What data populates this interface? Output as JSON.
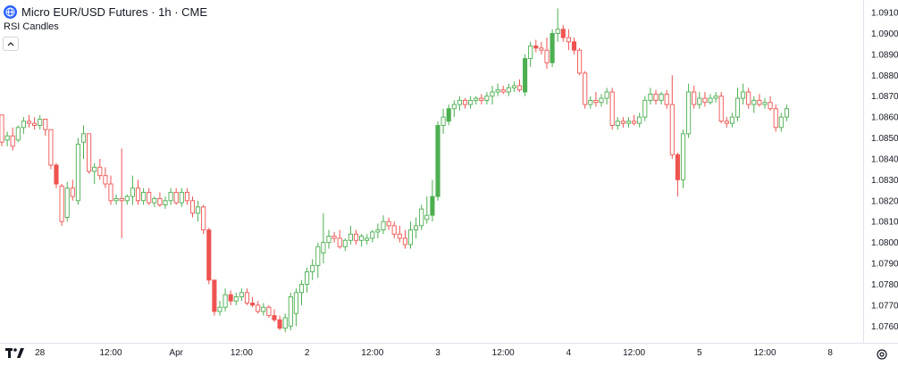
{
  "header": {
    "symbol_title": "Micro EUR/USD Futures · 1h · CME",
    "indicator_label": "RSI Candles",
    "symbol_icon": "globe-icon",
    "collapse_icon": "chevron-up-icon"
  },
  "footer": {
    "logo_icon": "tradingview-logo-icon",
    "settings_icon": "settings-icon"
  },
  "colors": {
    "up": "#4caf50",
    "down": "#ef5350",
    "axis": "#e0e3eb",
    "text": "#131722"
  },
  "chart_data": {
    "type": "candlestick",
    "title": "",
    "xlabel": "",
    "ylabel": "",
    "ylim": [
      1.0752,
      1.0916
    ],
    "y_ticks": [
      1.091,
      1.09,
      1.089,
      1.088,
      1.087,
      1.086,
      1.085,
      1.084,
      1.083,
      1.082,
      1.081,
      1.08,
      1.079,
      1.078,
      1.077,
      1.076
    ],
    "y_tick_labels": [
      "1.0910",
      "1.0900",
      "1.0890",
      "1.0880",
      "1.0870",
      "1.0860",
      "1.0850",
      "1.0840",
      "1.0830",
      "1.0820",
      "1.0810",
      "1.0800",
      "1.0790",
      "1.0780",
      "1.0770",
      "1.0760"
    ],
    "x_ticks": [
      {
        "label": "28",
        "index": 7
      },
      {
        "label": "12:00",
        "index": 20
      },
      {
        "label": "Apr",
        "index": 32
      },
      {
        "label": "12:00",
        "index": 44
      },
      {
        "label": "2",
        "index": 56
      },
      {
        "label": "12:00",
        "index": 68
      },
      {
        "label": "3",
        "index": 80
      },
      {
        "label": "12:00",
        "index": 92
      },
      {
        "label": "4",
        "index": 104
      },
      {
        "label": "12:00",
        "index": 116
      },
      {
        "label": "5",
        "index": 128
      },
      {
        "label": "12:00",
        "index": 140
      },
      {
        "label": "8",
        "index": 152
      }
    ],
    "candles": [
      {
        "o": 1.0861,
        "h": 1.0861,
        "l": 1.0846,
        "c": 1.0848,
        "fill": "none"
      },
      {
        "o": 1.0849,
        "h": 1.0853,
        "l": 1.0846,
        "c": 1.0851,
        "fill": "none"
      },
      {
        "o": 1.0851,
        "h": 1.0855,
        "l": 1.0844,
        "c": 1.0846,
        "fill": "none"
      },
      {
        "o": 1.0849,
        "h": 1.0856,
        "l": 1.0848,
        "c": 1.0855,
        "fill": "none"
      },
      {
        "o": 1.0855,
        "h": 1.086,
        "l": 1.0852,
        "c": 1.0858,
        "fill": "none"
      },
      {
        "o": 1.0858,
        "h": 1.0861,
        "l": 1.0855,
        "c": 1.0857,
        "fill": "none"
      },
      {
        "o": 1.0857,
        "h": 1.086,
        "l": 1.0854,
        "c": 1.0856,
        "fill": "none"
      },
      {
        "o": 1.0856,
        "h": 1.0861,
        "l": 1.0854,
        "c": 1.0859,
        "fill": "none"
      },
      {
        "o": 1.0859,
        "h": 1.0859,
        "l": 1.0851,
        "c": 1.0854,
        "fill": "none"
      },
      {
        "o": 1.0854,
        "h": 1.0854,
        "l": 1.0835,
        "c": 1.0837,
        "fill": "none"
      },
      {
        "o": 1.0837,
        "h": 1.0838,
        "l": 1.0826,
        "c": 1.0828,
        "fill": "solid"
      },
      {
        "o": 1.0827,
        "h": 1.0828,
        "l": 1.0808,
        "c": 1.081,
        "fill": "none"
      },
      {
        "o": 1.0812,
        "h": 1.0829,
        "l": 1.081,
        "c": 1.0826,
        "fill": "none"
      },
      {
        "o": 1.0826,
        "h": 1.083,
        "l": 1.082,
        "c": 1.0822,
        "fill": "none"
      },
      {
        "o": 1.082,
        "h": 1.085,
        "l": 1.0818,
        "c": 1.0847,
        "fill": "none"
      },
      {
        "o": 1.0848,
        "h": 1.0856,
        "l": 1.084,
        "c": 1.0852,
        "fill": "none"
      },
      {
        "o": 1.0852,
        "h": 1.0852,
        "l": 1.0833,
        "c": 1.0834,
        "fill": "none"
      },
      {
        "o": 1.0834,
        "h": 1.0838,
        "l": 1.0828,
        "c": 1.0836,
        "fill": "none"
      },
      {
        "o": 1.0836,
        "h": 1.084,
        "l": 1.083,
        "c": 1.0832,
        "fill": "none"
      },
      {
        "o": 1.0832,
        "h": 1.0836,
        "l": 1.0826,
        "c": 1.0828,
        "fill": "none"
      },
      {
        "o": 1.0828,
        "h": 1.0832,
        "l": 1.0818,
        "c": 1.082,
        "fill": "none"
      },
      {
        "o": 1.082,
        "h": 1.0823,
        "l": 1.0818,
        "c": 1.0821,
        "fill": "none"
      },
      {
        "o": 1.0821,
        "h": 1.0845,
        "l": 1.0802,
        "c": 1.082,
        "fill": "none"
      },
      {
        "o": 1.082,
        "h": 1.0823,
        "l": 1.0818,
        "c": 1.0822,
        "fill": "none"
      },
      {
        "o": 1.0822,
        "h": 1.0832,
        "l": 1.0818,
        "c": 1.0826,
        "fill": "none"
      },
      {
        "o": 1.0826,
        "h": 1.083,
        "l": 1.0818,
        "c": 1.082,
        "fill": "none"
      },
      {
        "o": 1.082,
        "h": 1.0826,
        "l": 1.0818,
        "c": 1.0824,
        "fill": "none"
      },
      {
        "o": 1.0824,
        "h": 1.0826,
        "l": 1.0818,
        "c": 1.0819,
        "fill": "none"
      },
      {
        "o": 1.0819,
        "h": 1.0822,
        "l": 1.0817,
        "c": 1.0821,
        "fill": "none"
      },
      {
        "o": 1.0821,
        "h": 1.0824,
        "l": 1.0817,
        "c": 1.0818,
        "fill": "none"
      },
      {
        "o": 1.0818,
        "h": 1.0822,
        "l": 1.0816,
        "c": 1.082,
        "fill": "none"
      },
      {
        "o": 1.082,
        "h": 1.0826,
        "l": 1.0818,
        "c": 1.0824,
        "fill": "none"
      },
      {
        "o": 1.0824,
        "h": 1.0826,
        "l": 1.0818,
        "c": 1.0819,
        "fill": "none"
      },
      {
        "o": 1.0819,
        "h": 1.0826,
        "l": 1.0817,
        "c": 1.0824,
        "fill": "none"
      },
      {
        "o": 1.0824,
        "h": 1.0826,
        "l": 1.0818,
        "c": 1.082,
        "fill": "none"
      },
      {
        "o": 1.082,
        "h": 1.0822,
        "l": 1.0812,
        "c": 1.0814,
        "fill": "none"
      },
      {
        "o": 1.0814,
        "h": 1.082,
        "l": 1.081,
        "c": 1.0817,
        "fill": "none"
      },
      {
        "o": 1.0817,
        "h": 1.0818,
        "l": 1.0804,
        "c": 1.0806,
        "fill": "none"
      },
      {
        "o": 1.0806,
        "h": 1.0807,
        "l": 1.078,
        "c": 1.0782,
        "fill": "solid"
      },
      {
        "o": 1.0782,
        "h": 1.0782,
        "l": 1.0765,
        "c": 1.0767,
        "fill": "solid"
      },
      {
        "o": 1.0767,
        "h": 1.0772,
        "l": 1.0765,
        "c": 1.0769,
        "fill": "none"
      },
      {
        "o": 1.0769,
        "h": 1.0778,
        "l": 1.0767,
        "c": 1.0775,
        "fill": "none"
      },
      {
        "o": 1.0775,
        "h": 1.0777,
        "l": 1.077,
        "c": 1.0772,
        "fill": "solid"
      },
      {
        "o": 1.0772,
        "h": 1.0776,
        "l": 1.077,
        "c": 1.0774,
        "fill": "none"
      },
      {
        "o": 1.0774,
        "h": 1.0778,
        "l": 1.0772,
        "c": 1.0776,
        "fill": "none"
      },
      {
        "o": 1.0776,
        "h": 1.0778,
        "l": 1.077,
        "c": 1.0771,
        "fill": "none"
      },
      {
        "o": 1.0771,
        "h": 1.0774,
        "l": 1.0769,
        "c": 1.077,
        "fill": "solid"
      },
      {
        "o": 1.077,
        "h": 1.0772,
        "l": 1.0766,
        "c": 1.0767,
        "fill": "none"
      },
      {
        "o": 1.0767,
        "h": 1.0771,
        "l": 1.0765,
        "c": 1.0769,
        "fill": "none"
      },
      {
        "o": 1.0769,
        "h": 1.077,
        "l": 1.0764,
        "c": 1.0765,
        "fill": "none"
      },
      {
        "o": 1.0765,
        "h": 1.0768,
        "l": 1.0762,
        "c": 1.0763,
        "fill": "solid"
      },
      {
        "o": 1.0763,
        "h": 1.0765,
        "l": 1.0758,
        "c": 1.0759,
        "fill": "solid"
      },
      {
        "o": 1.0759,
        "h": 1.0766,
        "l": 1.0757,
        "c": 1.0764,
        "fill": "none"
      },
      {
        "o": 1.076,
        "h": 1.0776,
        "l": 1.0758,
        "c": 1.0774,
        "fill": "none"
      },
      {
        "o": 1.0766,
        "h": 1.0778,
        "l": 1.076,
        "c": 1.0776,
        "fill": "none"
      },
      {
        "o": 1.0776,
        "h": 1.0782,
        "l": 1.077,
        "c": 1.078,
        "fill": "none"
      },
      {
        "o": 1.078,
        "h": 1.0788,
        "l": 1.0776,
        "c": 1.0786,
        "fill": "none"
      },
      {
        "o": 1.0786,
        "h": 1.0792,
        "l": 1.0782,
        "c": 1.0789,
        "fill": "none"
      },
      {
        "o": 1.0789,
        "h": 1.08,
        "l": 1.0783,
        "c": 1.0798,
        "fill": "none"
      },
      {
        "o": 1.0795,
        "h": 1.0814,
        "l": 1.079,
        "c": 1.08,
        "fill": "none"
      },
      {
        "o": 1.08,
        "h": 1.0806,
        "l": 1.0797,
        "c": 1.0803,
        "fill": "none"
      },
      {
        "o": 1.0803,
        "h": 1.0805,
        "l": 1.08,
        "c": 1.0802,
        "fill": "none"
      },
      {
        "o": 1.0802,
        "h": 1.0806,
        "l": 1.0797,
        "c": 1.0798,
        "fill": "none"
      },
      {
        "o": 1.0798,
        "h": 1.0802,
        "l": 1.0796,
        "c": 1.0801,
        "fill": "none"
      },
      {
        "o": 1.0801,
        "h": 1.0808,
        "l": 1.0799,
        "c": 1.0804,
        "fill": "none"
      },
      {
        "o": 1.0804,
        "h": 1.0806,
        "l": 1.0799,
        "c": 1.0801,
        "fill": "none"
      },
      {
        "o": 1.0801,
        "h": 1.0804,
        "l": 1.0798,
        "c": 1.0803,
        "fill": "none"
      },
      {
        "o": 1.0801,
        "h": 1.0804,
        "l": 1.0799,
        "c": 1.0802,
        "fill": "none"
      },
      {
        "o": 1.0802,
        "h": 1.0806,
        "l": 1.08,
        "c": 1.0805,
        "fill": "none"
      },
      {
        "o": 1.0805,
        "h": 1.0809,
        "l": 1.0802,
        "c": 1.0806,
        "fill": "none"
      },
      {
        "o": 1.0806,
        "h": 1.0813,
        "l": 1.0804,
        "c": 1.081,
        "fill": "none"
      },
      {
        "o": 1.081,
        "h": 1.0812,
        "l": 1.0806,
        "c": 1.0808,
        "fill": "none"
      },
      {
        "o": 1.0808,
        "h": 1.081,
        "l": 1.0802,
        "c": 1.0804,
        "fill": "none"
      },
      {
        "o": 1.0804,
        "h": 1.0808,
        "l": 1.08,
        "c": 1.0802,
        "fill": "none"
      },
      {
        "o": 1.0802,
        "h": 1.0806,
        "l": 1.0797,
        "c": 1.0799,
        "fill": "none"
      },
      {
        "o": 1.0799,
        "h": 1.081,
        "l": 1.0797,
        "c": 1.0806,
        "fill": "none"
      },
      {
        "o": 1.0806,
        "h": 1.0812,
        "l": 1.0802,
        "c": 1.0808,
        "fill": "none"
      },
      {
        "o": 1.0808,
        "h": 1.0818,
        "l": 1.0806,
        "c": 1.0816,
        "fill": "none"
      },
      {
        "o": 1.0811,
        "h": 1.0822,
        "l": 1.0809,
        "c": 1.0813,
        "fill": "none"
      },
      {
        "o": 1.0813,
        "h": 1.083,
        "l": 1.081,
        "c": 1.0822,
        "fill": "solid"
      },
      {
        "o": 1.0822,
        "h": 1.0858,
        "l": 1.082,
        "c": 1.0856,
        "fill": "solid"
      },
      {
        "o": 1.0856,
        "h": 1.0864,
        "l": 1.0852,
        "c": 1.086,
        "fill": "none"
      },
      {
        "o": 1.0858,
        "h": 1.0866,
        "l": 1.0856,
        "c": 1.0864,
        "fill": "solid"
      },
      {
        "o": 1.0864,
        "h": 1.0868,
        "l": 1.086,
        "c": 1.0866,
        "fill": "none"
      },
      {
        "o": 1.0866,
        "h": 1.087,
        "l": 1.0863,
        "c": 1.0868,
        "fill": "none"
      },
      {
        "o": 1.0868,
        "h": 1.0869,
        "l": 1.0864,
        "c": 1.0866,
        "fill": "none"
      },
      {
        "o": 1.0866,
        "h": 1.087,
        "l": 1.0864,
        "c": 1.0868,
        "fill": "none"
      },
      {
        "o": 1.0868,
        "h": 1.087,
        "l": 1.0866,
        "c": 1.0869,
        "fill": "none"
      },
      {
        "o": 1.0869,
        "h": 1.0871,
        "l": 1.0866,
        "c": 1.0868,
        "fill": "none"
      },
      {
        "o": 1.0868,
        "h": 1.0872,
        "l": 1.0866,
        "c": 1.087,
        "fill": "none"
      },
      {
        "o": 1.087,
        "h": 1.0875,
        "l": 1.0866,
        "c": 1.0872,
        "fill": "none"
      },
      {
        "o": 1.0872,
        "h": 1.0876,
        "l": 1.087,
        "c": 1.0873,
        "fill": "none"
      },
      {
        "o": 1.0873,
        "h": 1.0875,
        "l": 1.0871,
        "c": 1.0872,
        "fill": "none"
      },
      {
        "o": 1.0872,
        "h": 1.0876,
        "l": 1.087,
        "c": 1.0874,
        "fill": "none"
      },
      {
        "o": 1.0874,
        "h": 1.0877,
        "l": 1.0872,
        "c": 1.0875,
        "fill": "none"
      },
      {
        "o": 1.0875,
        "h": 1.0878,
        "l": 1.0872,
        "c": 1.0873,
        "fill": "none"
      },
      {
        "o": 1.0872,
        "h": 1.089,
        "l": 1.087,
        "c": 1.0888,
        "fill": "solid"
      },
      {
        "o": 1.0888,
        "h": 1.0896,
        "l": 1.0884,
        "c": 1.0894,
        "fill": "none"
      },
      {
        "o": 1.0894,
        "h": 1.0897,
        "l": 1.0891,
        "c": 1.0893,
        "fill": "solid"
      },
      {
        "o": 1.0893,
        "h": 1.0896,
        "l": 1.089,
        "c": 1.0892,
        "fill": "none"
      },
      {
        "o": 1.0892,
        "h": 1.0898,
        "l": 1.0883,
        "c": 1.0886,
        "fill": "none"
      },
      {
        "o": 1.0886,
        "h": 1.0902,
        "l": 1.0884,
        "c": 1.09,
        "fill": "solid"
      },
      {
        "o": 1.09,
        "h": 1.0912,
        "l": 1.0896,
        "c": 1.0902,
        "fill": "none"
      },
      {
        "o": 1.0902,
        "h": 1.0904,
        "l": 1.0896,
        "c": 1.0898,
        "fill": "solid"
      },
      {
        "o": 1.0898,
        "h": 1.0902,
        "l": 1.0892,
        "c": 1.0896,
        "fill": "none"
      },
      {
        "o": 1.0896,
        "h": 1.0898,
        "l": 1.089,
        "c": 1.0892,
        "fill": "solid"
      },
      {
        "o": 1.0892,
        "h": 1.0893,
        "l": 1.088,
        "c": 1.0881,
        "fill": "none"
      },
      {
        "o": 1.0881,
        "h": 1.0882,
        "l": 1.0864,
        "c": 1.0866,
        "fill": "none"
      },
      {
        "o": 1.0866,
        "h": 1.087,
        "l": 1.0864,
        "c": 1.0868,
        "fill": "none"
      },
      {
        "o": 1.0868,
        "h": 1.0872,
        "l": 1.0865,
        "c": 1.0867,
        "fill": "none"
      },
      {
        "o": 1.0867,
        "h": 1.0871,
        "l": 1.0865,
        "c": 1.0869,
        "fill": "none"
      },
      {
        "o": 1.0869,
        "h": 1.0874,
        "l": 1.0866,
        "c": 1.0872,
        "fill": "none"
      },
      {
        "o": 1.0872,
        "h": 1.0874,
        "l": 1.0854,
        "c": 1.0856,
        "fill": "none"
      },
      {
        "o": 1.0856,
        "h": 1.086,
        "l": 1.0854,
        "c": 1.0858,
        "fill": "none"
      },
      {
        "o": 1.0858,
        "h": 1.086,
        "l": 1.0855,
        "c": 1.0857,
        "fill": "none"
      },
      {
        "o": 1.0857,
        "h": 1.086,
        "l": 1.0855,
        "c": 1.0858,
        "fill": "none"
      },
      {
        "o": 1.0858,
        "h": 1.0861,
        "l": 1.0856,
        "c": 1.0857,
        "fill": "none"
      },
      {
        "o": 1.0857,
        "h": 1.0862,
        "l": 1.0855,
        "c": 1.086,
        "fill": "none"
      },
      {
        "o": 1.086,
        "h": 1.087,
        "l": 1.0858,
        "c": 1.0868,
        "fill": "none"
      },
      {
        "o": 1.0868,
        "h": 1.0874,
        "l": 1.0866,
        "c": 1.0871,
        "fill": "none"
      },
      {
        "o": 1.0871,
        "h": 1.0873,
        "l": 1.0866,
        "c": 1.0868,
        "fill": "none"
      },
      {
        "o": 1.0868,
        "h": 1.0872,
        "l": 1.0866,
        "c": 1.0871,
        "fill": "none"
      },
      {
        "o": 1.0871,
        "h": 1.0873,
        "l": 1.0864,
        "c": 1.0866,
        "fill": "none"
      },
      {
        "o": 1.0866,
        "h": 1.088,
        "l": 1.084,
        "c": 1.0842,
        "fill": "none"
      },
      {
        "o": 1.0842,
        "h": 1.0843,
        "l": 1.0822,
        "c": 1.083,
        "fill": "solid"
      },
      {
        "o": 1.083,
        "h": 1.0854,
        "l": 1.0826,
        "c": 1.0852,
        "fill": "none"
      },
      {
        "o": 1.0852,
        "h": 1.0876,
        "l": 1.085,
        "c": 1.0872,
        "fill": "none"
      },
      {
        "o": 1.0872,
        "h": 1.0875,
        "l": 1.0864,
        "c": 1.0866,
        "fill": "none"
      },
      {
        "o": 1.0866,
        "h": 1.0872,
        "l": 1.0864,
        "c": 1.0869,
        "fill": "none"
      },
      {
        "o": 1.0869,
        "h": 1.0872,
        "l": 1.0865,
        "c": 1.0867,
        "fill": "none"
      },
      {
        "o": 1.0867,
        "h": 1.0871,
        "l": 1.0866,
        "c": 1.0869,
        "fill": "none"
      },
      {
        "o": 1.0869,
        "h": 1.0872,
        "l": 1.0867,
        "c": 1.087,
        "fill": "none"
      },
      {
        "o": 1.087,
        "h": 1.0872,
        "l": 1.0857,
        "c": 1.0858,
        "fill": "none"
      },
      {
        "o": 1.0858,
        "h": 1.086,
        "l": 1.0855,
        "c": 1.0857,
        "fill": "none"
      },
      {
        "o": 1.0857,
        "h": 1.0862,
        "l": 1.0855,
        "c": 1.086,
        "fill": "none"
      },
      {
        "o": 1.086,
        "h": 1.0874,
        "l": 1.0858,
        "c": 1.0869,
        "fill": "none"
      },
      {
        "o": 1.0869,
        "h": 1.0876,
        "l": 1.0866,
        "c": 1.0872,
        "fill": "none"
      },
      {
        "o": 1.0872,
        "h": 1.0874,
        "l": 1.0864,
        "c": 1.0866,
        "fill": "none"
      },
      {
        "o": 1.0866,
        "h": 1.087,
        "l": 1.0862,
        "c": 1.0868,
        "fill": "none"
      },
      {
        "o": 1.0868,
        "h": 1.0871,
        "l": 1.0865,
        "c": 1.0866,
        "fill": "none"
      },
      {
        "o": 1.0866,
        "h": 1.0869,
        "l": 1.0864,
        "c": 1.0867,
        "fill": "none"
      },
      {
        "o": 1.0867,
        "h": 1.087,
        "l": 1.0863,
        "c": 1.0864,
        "fill": "none"
      },
      {
        "o": 1.0864,
        "h": 1.0866,
        "l": 1.0853,
        "c": 1.0855,
        "fill": "none"
      },
      {
        "o": 1.0855,
        "h": 1.0862,
        "l": 1.0853,
        "c": 1.086,
        "fill": "none"
      },
      {
        "o": 1.086,
        "h": 1.0866,
        "l": 1.0858,
        "c": 1.0864,
        "fill": "none"
      }
    ]
  }
}
